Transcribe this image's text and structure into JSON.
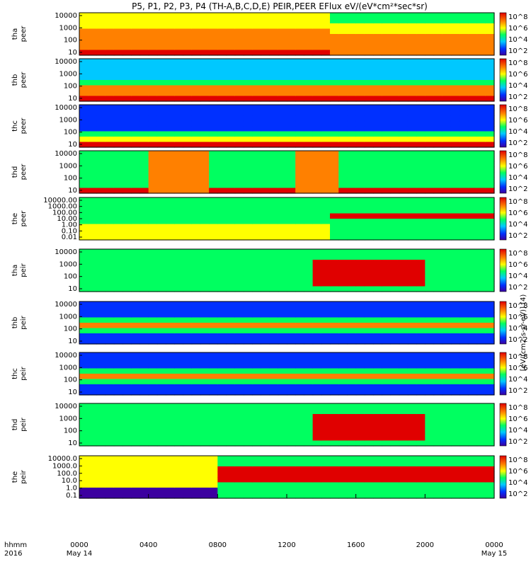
{
  "title": "P5, P1, P2, P3, P4 (TH-A,B,C,D,E) PEIR,PEER EFlux eV/(eV*cm²*sec*sr)",
  "colorbar_units": "[eV/(cm2-s-sr-eV)] (4)",
  "xaxis": {
    "row_label_1": "hhmm",
    "row_label_2": "2016",
    "ticks": [
      "0000",
      "0400",
      "0800",
      "1200",
      "1600",
      "2000",
      "0000"
    ],
    "dates": [
      "May 14",
      "May 15"
    ]
  },
  "chart_data": [
    {
      "type": "heatmap",
      "probe": "tha",
      "species": "peer",
      "ylabel": "tha\npeer",
      "yticks": [
        "10000",
        "1000",
        "100",
        "10"
      ],
      "colorbar": [
        "10^8",
        "10^6",
        "10^4",
        "10^2"
      ],
      "regime": "hot"
    },
    {
      "type": "heatmap",
      "probe": "thb",
      "species": "peer",
      "ylabel": "thb\npeer",
      "yticks": [
        "10000",
        "1000",
        "100",
        "10"
      ],
      "colorbar": [
        "10^8",
        "10^6",
        "10^4",
        "10^2"
      ],
      "regime": "layered"
    },
    {
      "type": "heatmap",
      "probe": "thc",
      "species": "peer",
      "ylabel": "thc\npeer",
      "yticks": [
        "10000",
        "1000",
        "100",
        "10"
      ],
      "colorbar": [
        "10^8",
        "10^6",
        "10^4",
        "10^2"
      ],
      "regime": "layered-cool"
    },
    {
      "type": "heatmap",
      "probe": "thd",
      "species": "peer",
      "ylabel": "thd\npeer",
      "yticks": [
        "10000",
        "1000",
        "100",
        "10"
      ],
      "colorbar": [
        "10^8",
        "10^6",
        "10^4",
        "10^2"
      ],
      "regime": "mixed"
    },
    {
      "type": "heatmap",
      "probe": "the",
      "species": "peer",
      "ylabel": "the\npeer",
      "yticks": [
        "10000.00",
        "1000.00",
        "100.00",
        "10.00",
        "1.00",
        "0.10",
        "0.01"
      ],
      "colorbar": [
        "10^8",
        "10^6",
        "10^4",
        "10^2"
      ],
      "regime": "the"
    },
    {
      "type": "heatmap",
      "probe": "tha",
      "species": "peir",
      "ylabel": "tha\npeir",
      "yticks": [
        "10000",
        "1000",
        "100",
        "10"
      ],
      "colorbar": [
        "10^8",
        "10^6",
        "10^4",
        "10^2"
      ],
      "regime": "ion"
    },
    {
      "type": "heatmap",
      "probe": "thb",
      "species": "peir",
      "ylabel": "thb\npeir",
      "yticks": [
        "10000",
        "1000",
        "100",
        "10"
      ],
      "colorbar": [
        "10^8",
        "10^6",
        "10^4",
        "10^2"
      ],
      "regime": "ion-cool"
    },
    {
      "type": "heatmap",
      "probe": "thc",
      "species": "peir",
      "ylabel": "thc\npeir",
      "yticks": [
        "10000",
        "1000",
        "100",
        "10"
      ],
      "colorbar": [
        "10^8",
        "10^6",
        "10^4",
        "10^2"
      ],
      "regime": "ion-cool"
    },
    {
      "type": "heatmap",
      "probe": "thd",
      "species": "peir",
      "ylabel": "thd\npeir",
      "yticks": [
        "10000",
        "1000",
        "100",
        "10"
      ],
      "colorbar": [
        "10^8",
        "10^6",
        "10^4",
        "10^2"
      ],
      "regime": "ion"
    },
    {
      "type": "heatmap",
      "probe": "the",
      "species": "peir",
      "ylabel": "the\npeir",
      "yticks": [
        "10000.0",
        "1000.0",
        "100.0",
        "10.0",
        "1.0",
        "0.1"
      ],
      "colorbar": [
        "10^8",
        "10^6",
        "10^4",
        "10^2"
      ],
      "regime": "ion-the"
    }
  ]
}
